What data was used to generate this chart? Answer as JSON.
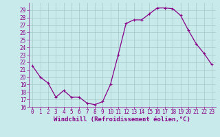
{
  "hours": [
    0,
    1,
    2,
    3,
    4,
    5,
    6,
    7,
    8,
    9,
    10,
    11,
    12,
    13,
    14,
    15,
    16,
    17,
    18,
    19,
    20,
    21,
    22,
    23
  ],
  "values": [
    21.5,
    20.0,
    19.2,
    17.3,
    18.2,
    17.3,
    17.3,
    16.5,
    16.3,
    16.7,
    19.0,
    23.0,
    27.2,
    27.7,
    27.7,
    28.5,
    29.3,
    29.3,
    29.2,
    28.3,
    26.3,
    24.5,
    23.2,
    21.7
  ],
  "ylim_min": 16,
  "ylim_max": 30,
  "yticks": [
    16,
    17,
    18,
    19,
    20,
    21,
    22,
    23,
    24,
    25,
    26,
    27,
    28,
    29
  ],
  "xticks": [
    0,
    1,
    2,
    3,
    4,
    5,
    6,
    7,
    8,
    9,
    10,
    11,
    12,
    13,
    14,
    15,
    16,
    17,
    18,
    19,
    20,
    21,
    22,
    23
  ],
  "line_color": "#880088",
  "bg_color": "#c8eaea",
  "grid_color": "#a8c8c8",
  "xlabel": "Windchill (Refroidissement éolien,°C)",
  "marker": "+",
  "markersize": 3,
  "markeredgewidth": 0.8,
  "linewidth": 0.9,
  "xlabel_fontsize": 6.5,
  "tick_fontsize": 5.5,
  "tick_color": "#880088",
  "label_color": "#880088",
  "spine_color": "#880088"
}
